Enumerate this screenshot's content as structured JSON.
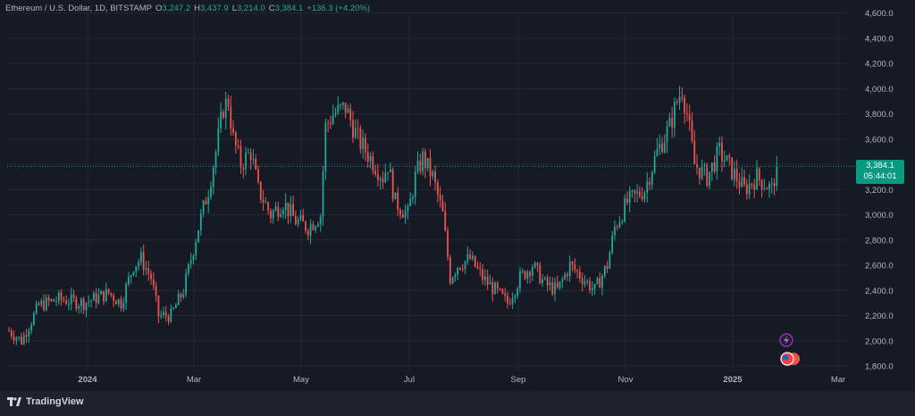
{
  "header": {
    "symbol": "Ethereum / U.S. Dollar, 1D, BITSTAMP",
    "open_label": "O",
    "open": "3,247.2",
    "high_label": "H",
    "high": "3,437.9",
    "low_label": "L",
    "low": "3,214.0",
    "close_label": "C",
    "close": "3,384.1",
    "change": "+136.3 (+4.20%)"
  },
  "price_tag": {
    "price": "3,384.1",
    "countdown": "05:44:01"
  },
  "footer": {
    "brand": "TradingView"
  },
  "colors": {
    "up": "#26a69a",
    "down": "#ef5350",
    "background": "#161a25",
    "grid": "#242733",
    "text": "#b2b5be"
  },
  "chart_data": {
    "type": "candlestick",
    "title": "Ethereum / U.S. Dollar, 1D, BITSTAMP",
    "y_ticks": [
      1800,
      2000,
      2200,
      2400,
      2600,
      2800,
      3000,
      3200,
      3400,
      3600,
      3800,
      4000,
      4200,
      4400,
      4600
    ],
    "y_tick_labels": [
      "1,800.0",
      "2,000.0",
      "2,200.0",
      "2,400.0",
      "2,600.0",
      "2,800.0",
      "3,000.0",
      "3,200.0",
      "3,400.0",
      "3,600.0",
      "3,800.0",
      "4,000.0",
      "4,200.0",
      "4,400.0",
      "4,600.0"
    ],
    "ylim": [
      1800,
      4700
    ],
    "x_labels": [
      "2024",
      "Mar",
      "May",
      "Jul",
      "Sep",
      "Nov",
      "2025",
      "Mar"
    ],
    "last_price": 3384.1,
    "close_path": [
      [
        0,
        2080
      ],
      [
        5,
        2000
      ],
      [
        12,
        2280
      ],
      [
        20,
        2330
      ],
      [
        30,
        2300
      ],
      [
        40,
        2380
      ],
      [
        45,
        2300
      ],
      [
        50,
        2600
      ],
      [
        53,
        2650
      ],
      [
        57,
        2500
      ],
      [
        60,
        2200
      ],
      [
        65,
        2200
      ],
      [
        70,
        2400
      ],
      [
        76,
        2900
      ],
      [
        80,
        3200
      ],
      [
        83,
        3500
      ],
      [
        86,
        3850
      ],
      [
        88,
        3900
      ],
      [
        90,
        3600
      ],
      [
        93,
        3400
      ],
      [
        97,
        3500
      ],
      [
        100,
        3200
      ],
      [
        105,
        3000
      ],
      [
        110,
        3100
      ],
      [
        115,
        2950
      ],
      [
        120,
        2900
      ],
      [
        125,
        3000
      ],
      [
        127,
        3700
      ],
      [
        130,
        3800
      ],
      [
        135,
        3850
      ],
      [
        138,
        3700
      ],
      [
        140,
        3600
      ],
      [
        145,
        3450
      ],
      [
        150,
        3300
      ],
      [
        152,
        3400
      ],
      [
        155,
        3100
      ],
      [
        160,
        3000
      ],
      [
        163,
        3300
      ],
      [
        166,
        3450
      ],
      [
        170,
        3300
      ],
      [
        174,
        3000
      ],
      [
        177,
        2500
      ],
      [
        180,
        2600
      ],
      [
        185,
        2650
      ],
      [
        190,
        2500
      ],
      [
        195,
        2400
      ],
      [
        200,
        2300
      ],
      [
        205,
        2500
      ],
      [
        210,
        2600
      ],
      [
        215,
        2450
      ],
      [
        220,
        2400
      ],
      [
        225,
        2600
      ],
      [
        230,
        2500
      ],
      [
        235,
        2400
      ],
      [
        240,
        2600
      ],
      [
        243,
        2900
      ],
      [
        248,
        3100
      ],
      [
        255,
        3200
      ],
      [
        260,
        3500
      ],
      [
        265,
        3700
      ],
      [
        268,
        3900
      ],
      [
        270,
        4000
      ],
      [
        272,
        3800
      ],
      [
        275,
        3400
      ],
      [
        280,
        3300
      ],
      [
        285,
        3500
      ],
      [
        290,
        3350
      ],
      [
        295,
        3200
      ],
      [
        300,
        3300
      ],
      [
        303,
        3250
      ],
      [
        306,
        3200
      ],
      [
        308,
        3384
      ]
    ]
  }
}
